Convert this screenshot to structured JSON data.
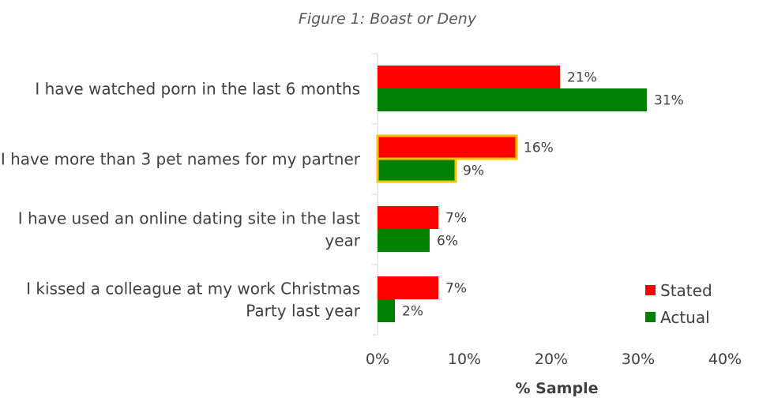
{
  "chart_data": {
    "type": "bar",
    "orientation": "horizontal",
    "title": "Figure 1: Boast or Deny",
    "xlabel": "% Sample",
    "ylabel": "",
    "xlim": [
      0,
      40
    ],
    "x_ticks": [
      0,
      10,
      20,
      30,
      40
    ],
    "x_tick_labels": [
      "0%",
      "10%",
      "20%",
      "30%",
      "40%"
    ],
    "grid": false,
    "legend_position": "bottom-right",
    "categories": [
      [
        "I have watched porn in the last 6 months"
      ],
      [
        "I have more than 3 pet names for my partner"
      ],
      [
        "I have used an online dating site in the last",
        "year"
      ],
      [
        "I kissed a colleague at my work Christmas",
        "Party last year"
      ]
    ],
    "series": [
      {
        "name": "Stated",
        "color": "#ff0000",
        "values": [
          21,
          16,
          7,
          7
        ],
        "labels": [
          "21%",
          "16%",
          "7%",
          "7%"
        ]
      },
      {
        "name": "Actual",
        "color": "#008000",
        "values": [
          31,
          9,
          6,
          2
        ],
        "labels": [
          "31%",
          "9%",
          "6%",
          "2%"
        ]
      }
    ],
    "highlighted_category_index": 1,
    "highlight_color": "#ffc000"
  }
}
